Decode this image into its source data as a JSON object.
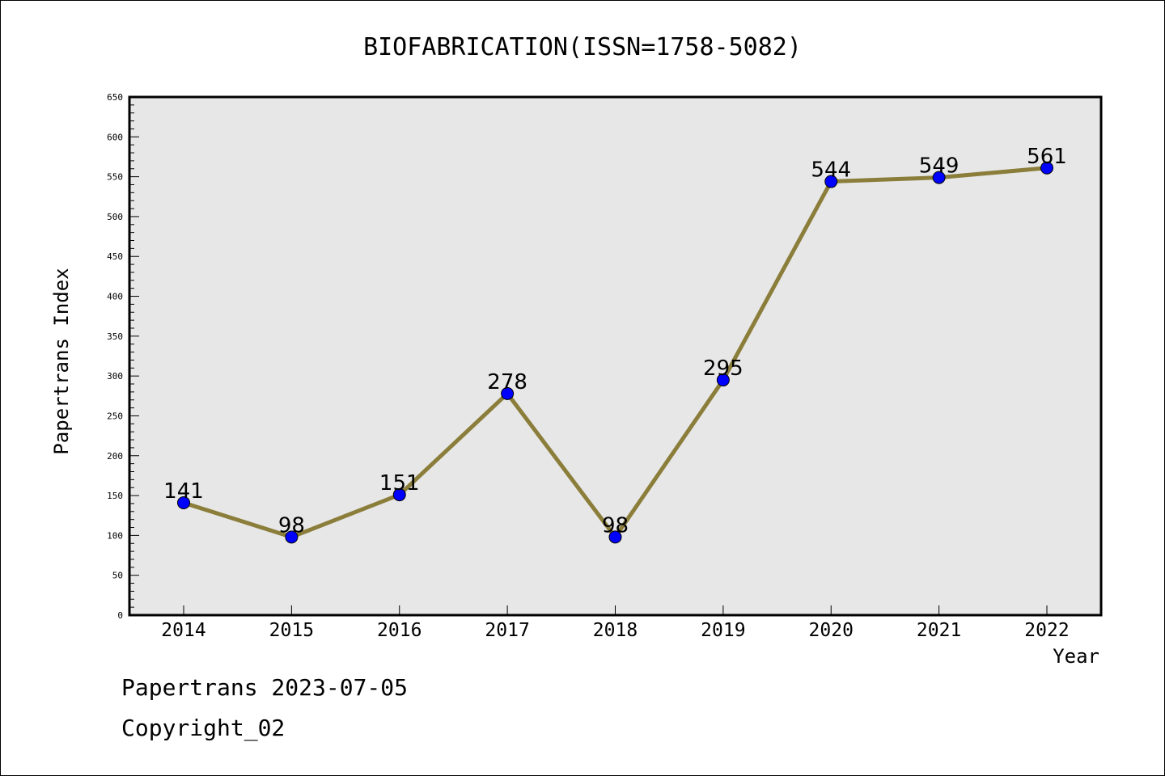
{
  "chart_data": {
    "type": "line",
    "title": "BIOFABRICATION(ISSN=1758-5082)",
    "xlabel": "Year",
    "ylabel": "Papertrans Index",
    "categories": [
      "2014",
      "2015",
      "2016",
      "2017",
      "2018",
      "2019",
      "2020",
      "2021",
      "2022"
    ],
    "series": [
      {
        "values": [
          141,
          98,
          151,
          278,
          98,
          295,
          544,
          549,
          561
        ],
        "line_color": "#8b7d3a",
        "marker_color": "#0000ff"
      }
    ],
    "data_labels": [
      "141",
      "98",
      "151",
      "278",
      "98",
      "295",
      "544",
      "549",
      "561"
    ],
    "ylim": [
      0,
      650
    ],
    "y_ticks": [
      0,
      50,
      100,
      150,
      200,
      250,
      300,
      350,
      400,
      450,
      500,
      550,
      600,
      650
    ],
    "y_minor_step": 10,
    "grid": false,
    "plot_background": "#e7e7e7"
  },
  "footer": {
    "date_text": "Papertrans 2023-07-05",
    "copyright_text": "Copyright_02"
  }
}
